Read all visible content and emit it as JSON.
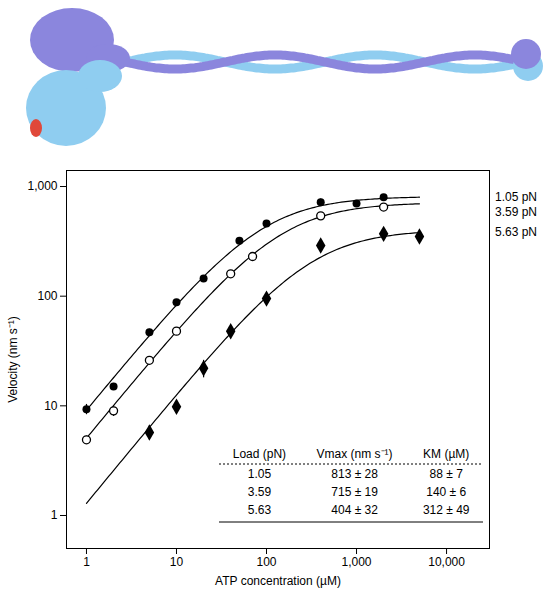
{
  "chart_data": {
    "type": "scatter",
    "x_label": "ATP concentration (µM)",
    "y_label": "Velocity (nm s⁻¹)",
    "log": true,
    "grid": false,
    "xlim": [
      0.6,
      30000
    ],
    "ylim": [
      0.5,
      1400
    ],
    "xticks": [
      1,
      10,
      100,
      {
        "value": 1000,
        "label": "1,000"
      },
      {
        "value": 10000,
        "label": "10,000"
      }
    ],
    "yticks": [
      1,
      10,
      100,
      {
        "value": 1000,
        "label": "1,000"
      }
    ],
    "series": [
      {
        "name": "1.05 pN",
        "color": "#000000",
        "marker": "circle",
        "x": [
          1,
          2,
          5,
          10,
          20,
          50,
          100,
          400,
          1000,
          2000
        ],
        "values": [
          9.3,
          15,
          47,
          88,
          145,
          320,
          460,
          720,
          700,
          800
        ],
        "errors": [
          1,
          1,
          3,
          5,
          8,
          20,
          25,
          50,
          40,
          40
        ],
        "vmax": 813,
        "km": 88
      },
      {
        "name": "3.59 pN",
        "color": "#000000",
        "marker": "open circle",
        "x": [
          1,
          2,
          5,
          10,
          40,
          70,
          400,
          2000
        ],
        "values": [
          4.9,
          9,
          26,
          48,
          160,
          230,
          540,
          650
        ],
        "errors": [
          0.4,
          1,
          2,
          3,
          10,
          15,
          30,
          40
        ],
        "vmax": 715,
        "km": 140
      },
      {
        "name": "5.63 pN",
        "color": "#000000",
        "marker": "diamond",
        "x": [
          5,
          10,
          20,
          40,
          100,
          400,
          2000,
          5000
        ],
        "values": [
          5.7,
          9.8,
          22,
          48,
          95,
          290,
          370,
          350
        ],
        "errors": [
          0.8,
          1.3,
          4,
          5,
          8,
          25,
          25,
          20
        ],
        "vmax": 404,
        "km": 312
      }
    ],
    "table": {
      "columns": [
        "Load (pN)",
        "Vmax (nm s⁻¹)",
        "KM (µM)"
      ],
      "rows": [
        [
          "1.05",
          "813 ± 28",
          "88 ± 7"
        ],
        [
          "3.59",
          "715 ± 19",
          "140 ± 6"
        ],
        [
          "5.63",
          "404 ± 32",
          "312 ± 49"
        ]
      ]
    }
  }
}
